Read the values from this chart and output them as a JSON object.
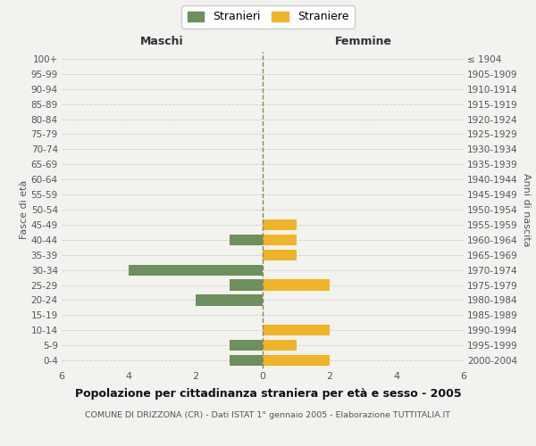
{
  "age_groups": [
    "0-4",
    "5-9",
    "10-14",
    "15-19",
    "20-24",
    "25-29",
    "30-34",
    "35-39",
    "40-44",
    "45-49",
    "50-54",
    "55-59",
    "60-64",
    "65-69",
    "70-74",
    "75-79",
    "80-84",
    "85-89",
    "90-94",
    "95-99",
    "100+"
  ],
  "birth_years": [
    "2000-2004",
    "1995-1999",
    "1990-1994",
    "1985-1989",
    "1980-1984",
    "1975-1979",
    "1970-1974",
    "1965-1969",
    "1960-1964",
    "1955-1959",
    "1950-1954",
    "1945-1949",
    "1940-1944",
    "1935-1939",
    "1930-1934",
    "1925-1929",
    "1920-1924",
    "1915-1919",
    "1910-1914",
    "1905-1909",
    "≤ 1904"
  ],
  "males": [
    1,
    1,
    0,
    0,
    2,
    1,
    4,
    0,
    1,
    0,
    0,
    0,
    0,
    0,
    0,
    0,
    0,
    0,
    0,
    0,
    0
  ],
  "females": [
    2,
    1,
    2,
    0,
    0,
    2,
    0,
    1,
    1,
    1,
    0,
    0,
    0,
    0,
    0,
    0,
    0,
    0,
    0,
    0,
    0
  ],
  "color_male": "#6e8f5e",
  "color_female": "#f0b429",
  "xlim": 6,
  "title": "Popolazione per cittadinanza straniera per età e sesso - 2005",
  "subtitle": "COMUNE DI DRIZZONA (CR) - Dati ISTAT 1° gennaio 2005 - Elaborazione TUTTITALIA.IT",
  "ylabel_left": "Fasce di età",
  "ylabel_right": "Anni di nascita",
  "header_left": "Maschi",
  "header_right": "Femmine",
  "legend_male": "Stranieri",
  "legend_female": "Straniere",
  "bg_color": "#f2f2ee",
  "grid_color": "#cccccc"
}
